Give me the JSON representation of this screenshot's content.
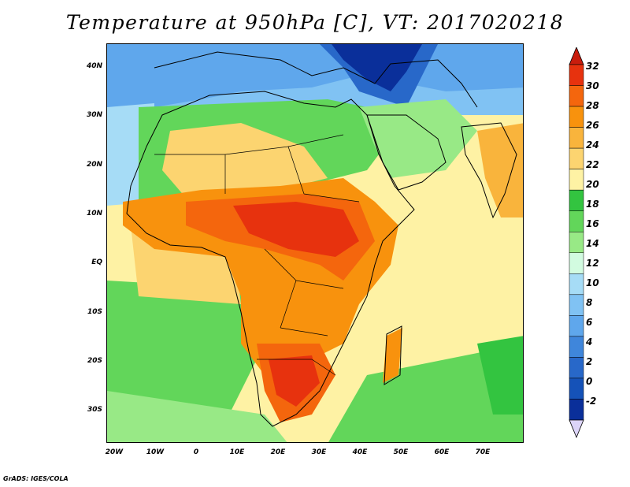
{
  "title": "Temperature at 950hPa [C], VT: 2017020218",
  "footer": "GrADS: IGES/COLA",
  "map": {
    "projection": "lat-lon",
    "lon_range": [
      -22,
      80
    ],
    "lat_range": [
      -36,
      45
    ],
    "lat_ticks": [
      {
        "value": 40,
        "label": "40N"
      },
      {
        "value": 30,
        "label": "30N"
      },
      {
        "value": 20,
        "label": "20N"
      },
      {
        "value": 10,
        "label": "10N"
      },
      {
        "value": 0,
        "label": "EQ"
      },
      {
        "value": -10,
        "label": "10S"
      },
      {
        "value": -20,
        "label": "20S"
      },
      {
        "value": -30,
        "label": "30S"
      }
    ],
    "lon_ticks": [
      {
        "value": -20,
        "label": "20W"
      },
      {
        "value": -10,
        "label": "10W"
      },
      {
        "value": 0,
        "label": "0"
      },
      {
        "value": 10,
        "label": "10E"
      },
      {
        "value": 20,
        "label": "20E"
      },
      {
        "value": 30,
        "label": "30E"
      },
      {
        "value": 40,
        "label": "40E"
      },
      {
        "value": 50,
        "label": "50E"
      },
      {
        "value": 60,
        "label": "60E"
      },
      {
        "value": 70,
        "label": "70E"
      }
    ]
  },
  "colorbar": {
    "levels": [
      "32",
      "30",
      "28",
      "26",
      "24",
      "22",
      "20",
      "18",
      "16",
      "14",
      "12",
      "10",
      "8",
      "6",
      "4",
      "2",
      "0",
      "-2"
    ],
    "colors": [
      "#e7320e",
      "#f4660d",
      "#f8920d",
      "#f9b43c",
      "#fcd470",
      "#fef2a4",
      "#33c440",
      "#62d65a",
      "#98e986",
      "#d2fbe0",
      "#a6dcf6",
      "#80c2f3",
      "#5fa7ec",
      "#3f86db",
      "#2868c9",
      "#1552b8",
      "#0a2f9a",
      "#051a70"
    ],
    "over_color": "#c91d0d",
    "under_color": "#dcd4f8"
  }
}
